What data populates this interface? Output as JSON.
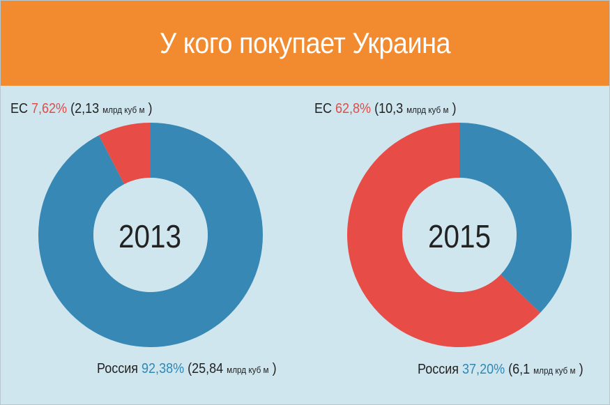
{
  "header": {
    "title": "У кого покупает Украина"
  },
  "colors": {
    "eu": "#e84c46",
    "russia": "#3788b4",
    "header": "#f28a2f",
    "background": "#cfe6ef"
  },
  "chart_data": [
    {
      "type": "pie",
      "center_label": "2013",
      "slices": [
        {
          "name": "ЕС",
          "percent_label": "7,62%",
          "value": 7.62,
          "volume_label": "(2,13",
          "unit_label": "млрд куб м",
          "close": ")",
          "color": "#e84c46"
        },
        {
          "name": "Россия",
          "percent_label": "92,38%",
          "value": 92.38,
          "volume_label": "(25,84",
          "unit_label": "млрд куб м",
          "close": ")",
          "color": "#3788b4"
        }
      ]
    },
    {
      "type": "pie",
      "center_label": "2015",
      "slices": [
        {
          "name": "ЕС",
          "percent_label": "62,8%",
          "value": 62.8,
          "volume_label": "(10,3",
          "unit_label": "млрд куб м",
          "close": ")",
          "color": "#e84c46"
        },
        {
          "name": "Россия",
          "percent_label": "37,20%",
          "value": 37.2,
          "volume_label": "(6,1",
          "unit_label": "млрд куб м",
          "close": ")",
          "color": "#3788b4"
        }
      ]
    }
  ]
}
